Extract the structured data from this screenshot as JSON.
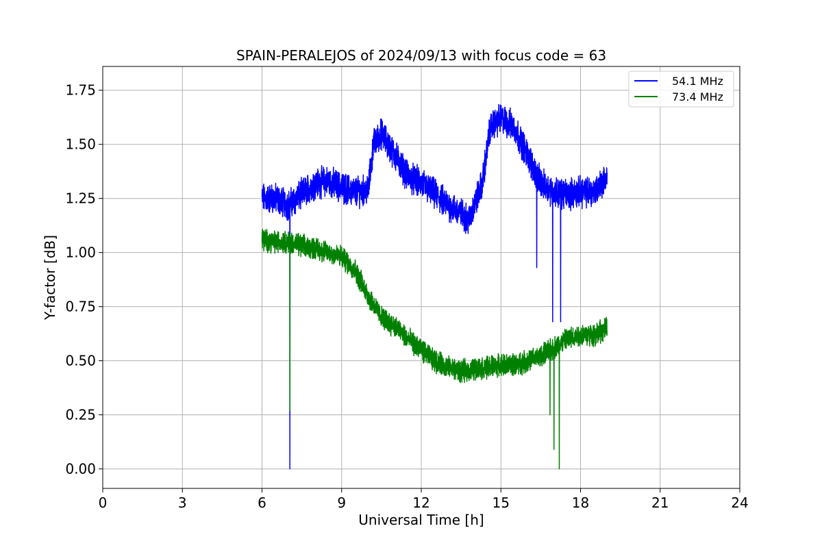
{
  "chart_data": {
    "type": "line",
    "title": "SPAIN-PERALEJOS of 2024/09/13 with focus code = 63",
    "xlabel": "Universal Time [h]",
    "ylabel": "Y-factor [dB]",
    "xlim": [
      0,
      24
    ],
    "ylim": [
      -0.09,
      1.86
    ],
    "xticks": [
      0,
      3,
      6,
      9,
      12,
      15,
      18,
      21,
      24
    ],
    "xtick_labels": [
      "0",
      "3",
      "6",
      "9",
      "12",
      "15",
      "18",
      "21",
      "24"
    ],
    "yticks": [
      0.0,
      0.25,
      0.5,
      0.75,
      1.0,
      1.25,
      1.5,
      1.75
    ],
    "ytick_labels": [
      "0.00",
      "0.25",
      "0.50",
      "0.75",
      "1.00",
      "1.25",
      "1.50",
      "1.75"
    ],
    "grid": true,
    "legend_position": "top-right",
    "series": [
      {
        "name": "54.1 MHz",
        "color": "#0000ff",
        "noise": 0.055,
        "x": [
          6.0,
          6.5,
          7.0,
          7.5,
          8.0,
          8.5,
          9.0,
          9.5,
          10.0,
          10.2,
          10.5,
          11.0,
          11.5,
          12.0,
          12.5,
          13.0,
          13.5,
          13.8,
          14.0,
          14.3,
          14.6,
          15.0,
          15.5,
          16.0,
          16.5,
          17.0,
          17.5,
          18.0,
          18.5,
          19.0
        ],
        "y": [
          1.25,
          1.25,
          1.22,
          1.27,
          1.32,
          1.33,
          1.3,
          1.28,
          1.29,
          1.5,
          1.55,
          1.45,
          1.35,
          1.32,
          1.27,
          1.22,
          1.18,
          1.15,
          1.22,
          1.32,
          1.58,
          1.62,
          1.58,
          1.45,
          1.32,
          1.28,
          1.27,
          1.28,
          1.28,
          1.35
        ],
        "spikes": [
          {
            "x": 7.05,
            "y": 0.0
          },
          {
            "x": 16.35,
            "y": 0.93
          },
          {
            "x": 16.95,
            "y": 0.68
          },
          {
            "x": 17.25,
            "y": 0.68
          }
        ]
      },
      {
        "name": "73.4 MHz",
        "color": "#008000",
        "noise": 0.04,
        "x": [
          6.0,
          6.5,
          7.0,
          7.5,
          8.0,
          8.5,
          9.0,
          9.5,
          10.0,
          10.5,
          11.0,
          11.5,
          12.0,
          12.5,
          13.0,
          13.5,
          14.0,
          14.5,
          15.0,
          15.5,
          16.0,
          16.5,
          17.0,
          17.5,
          18.0,
          18.5,
          19.0
        ],
        "y": [
          1.06,
          1.05,
          1.05,
          1.03,
          1.02,
          1.0,
          0.98,
          0.92,
          0.8,
          0.7,
          0.66,
          0.6,
          0.55,
          0.5,
          0.47,
          0.45,
          0.46,
          0.47,
          0.48,
          0.48,
          0.5,
          0.52,
          0.56,
          0.6,
          0.62,
          0.62,
          0.65
        ],
        "spikes": [
          {
            "x": 7.05,
            "y": 0.27
          },
          {
            "x": 16.85,
            "y": 0.25
          },
          {
            "x": 17.0,
            "y": 0.09
          },
          {
            "x": 17.2,
            "y": 0.0
          }
        ]
      }
    ]
  }
}
